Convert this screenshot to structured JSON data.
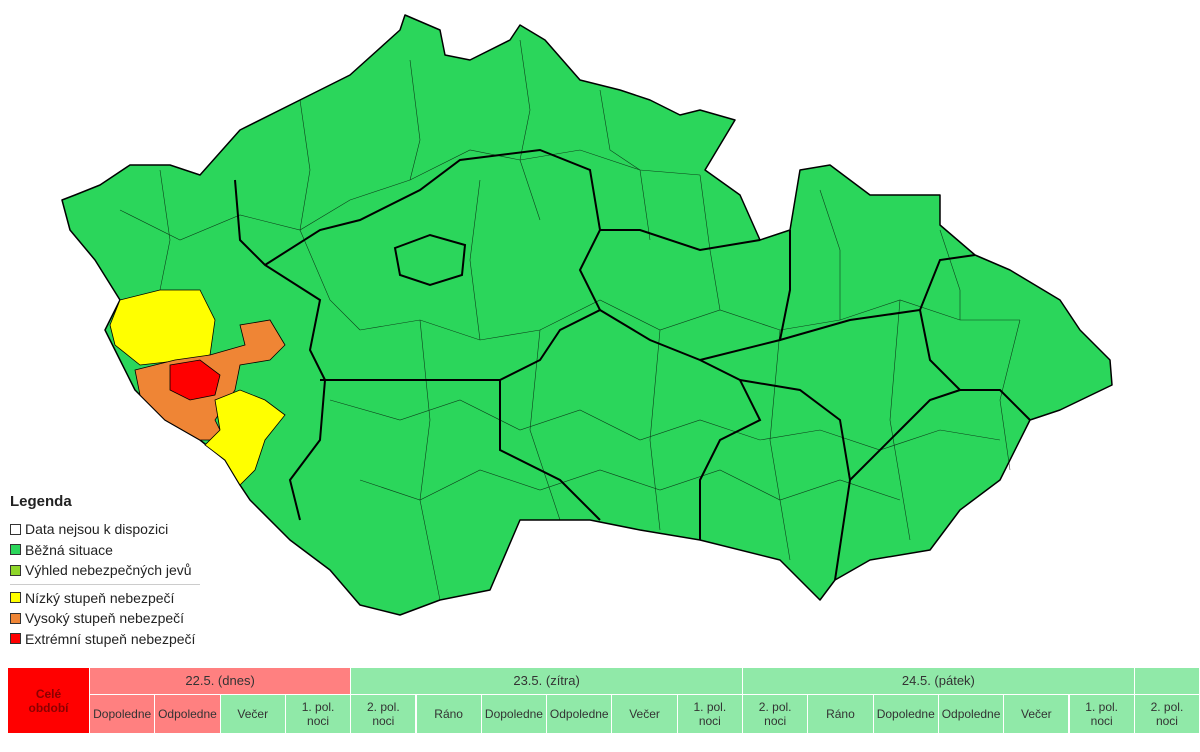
{
  "map": {
    "outline_color": "#000000"
  },
  "legend": {
    "title": "Legenda",
    "items": [
      {
        "label": "Data nejsou k dispozici",
        "color": "#ffffff"
      },
      {
        "label": "Běžná situace",
        "color": "#2bd65b"
      },
      {
        "label": "Výhled nebezpečných jevů",
        "color": "#8fd62a"
      },
      {
        "label": "Nízký stupeň nebezpečí",
        "color": "#ffff00"
      },
      {
        "label": "Vysoký stupeň nebezpečí",
        "color": "#ef8535"
      },
      {
        "label": "Extrémní stupeň nebezpečí",
        "color": "#ff0000"
      }
    ]
  },
  "timeline": {
    "corner": {
      "label": "Celé období",
      "color": "#ff0000"
    },
    "days": [
      {
        "label": "22.5. (dnes)",
        "color": "#ff8080",
        "periods": [
          {
            "label": "Dopoledne",
            "color": "#ff8080"
          },
          {
            "label": "Odpoledne",
            "color": "#ff8080"
          },
          {
            "label": "Večer",
            "color": "#90e9a8"
          },
          {
            "label": "1. pol. noci",
            "color": "#90e9a8"
          }
        ]
      },
      {
        "label": "23.5. (zítra)",
        "color": "#90e9a8",
        "periods": [
          {
            "label": "2. pol. noci",
            "color": "#90e9a8"
          },
          {
            "label": "Ráno",
            "color": "#90e9a8"
          },
          {
            "label": "Dopoledne",
            "color": "#90e9a8"
          },
          {
            "label": "Odpoledne",
            "color": "#90e9a8"
          },
          {
            "label": "Večer",
            "color": "#90e9a8"
          },
          {
            "label": "1. pol. noci",
            "color": "#90e9a8"
          }
        ]
      },
      {
        "label": "24.5. (pátek)",
        "color": "#90e9a8",
        "periods": [
          {
            "label": "2. pol. noci",
            "color": "#90e9a8"
          },
          {
            "label": "Ráno",
            "color": "#90e9a8"
          },
          {
            "label": "Dopoledne",
            "color": "#90e9a8"
          },
          {
            "label": "Odpoledne",
            "color": "#90e9a8"
          },
          {
            "label": "Večer",
            "color": "#90e9a8"
          },
          {
            "label": "1. pol. noci",
            "color": "#90e9a8"
          }
        ]
      },
      {
        "color": "#90e9a8",
        "periods": [
          {
            "label": "2. pol. noci",
            "color": "#90e9a8"
          }
        ]
      }
    ]
  }
}
